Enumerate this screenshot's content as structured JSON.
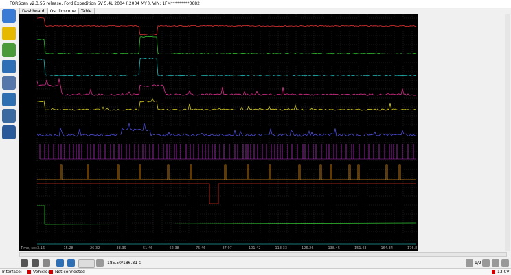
{
  "window": {
    "title": "FORScan v2.3.55 release, Ford Expedition 5V 5.4L 2004 (.2004 MY ), VIN: 1FM*********0682"
  },
  "tabs": [
    "Dashboard",
    "Oscilloscope",
    "Table"
  ],
  "plot": {
    "x_axis_label": "Time, sec",
    "x_ticks": [
      "3.16",
      "15.28",
      "26.32",
      "38.39",
      "51.46",
      "62.38",
      "75.46",
      "87.97",
      "101.42",
      "113.33",
      "126.26",
      "138.45",
      "151.43",
      "164.34",
      "176.81"
    ]
  },
  "toolbar": {
    "time_readout": "185.50/186.81 s",
    "zoom": "1/2"
  },
  "status": {
    "interface": "Interface:",
    "vehicle": "Vehicle:",
    "connection": "Not connected",
    "voltage": "13.0V"
  }
}
